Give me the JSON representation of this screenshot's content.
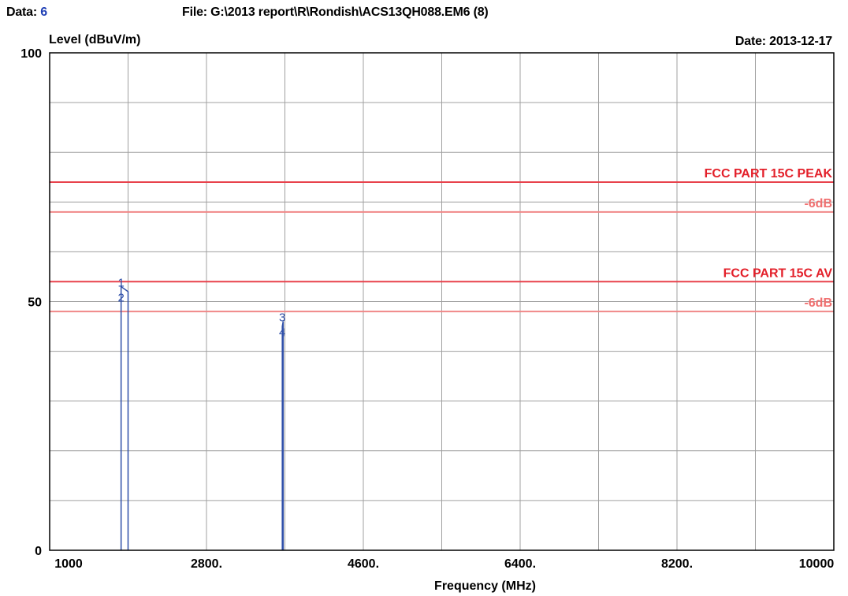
{
  "header": {
    "data_label": "Data:",
    "data_value": "6",
    "file_text": "File: G:\\2013 report\\R\\Rondish\\ACS13QH088.EM6  (8)",
    "date_text": "Date: 2013-12-17"
  },
  "colors": {
    "grid": "#a0a0a0",
    "frame": "#000000",
    "limit_line": "#e8424c",
    "margin_line": "#f08888",
    "limit_label": "#e3202a",
    "margin_label": "#f07070",
    "trace": "#2f4fa8"
  },
  "chart_data": {
    "type": "line",
    "title": "",
    "xlabel": "Frequency (MHz)",
    "ylabel": "Level (dBuV/m)",
    "xlim": [
      1000,
      10000
    ],
    "ylim": [
      0,
      100
    ],
    "x_ticks": [
      1000,
      2800,
      4600,
      6400,
      8200,
      10000
    ],
    "x_tick_labels": [
      "1000",
      "2800.",
      "4600.",
      "6400.",
      "8200.",
      "10000"
    ],
    "y_ticks": [
      0,
      50,
      100
    ],
    "y_tick_labels": [
      "0",
      "50",
      "100"
    ],
    "x_gridlines": [
      1000,
      1900,
      2800,
      3700,
      4600,
      5500,
      6400,
      7300,
      8200,
      9100,
      10000
    ],
    "y_gridlines": [
      0,
      10,
      20,
      30,
      40,
      50,
      60,
      70,
      80,
      90,
      100
    ],
    "grid": true,
    "limit_lines": [
      {
        "name": "FCC PART 15C  PEAK",
        "y": 74,
        "kind": "limit"
      },
      {
        "name": "-6dB",
        "y": 68,
        "kind": "margin"
      },
      {
        "name": "FCC PART 15C AV",
        "y": 54,
        "kind": "limit"
      },
      {
        "name": "-6dB",
        "y": 48,
        "kind": "margin"
      }
    ],
    "series": [
      {
        "x": [
          1820,
          1820,
          1900,
          1900
        ],
        "y": [
          0,
          53,
          52,
          0
        ]
      },
      {
        "x": [
          3670,
          3670,
          3680,
          3680
        ],
        "y": [
          0,
          45,
          46,
          0
        ]
      }
    ],
    "markers": [
      {
        "label": "1",
        "x": 1820,
        "y": 53
      },
      {
        "label": "2",
        "x": 1820,
        "y": 50
      },
      {
        "label": "3",
        "x": 3670,
        "y": 46
      },
      {
        "label": "4",
        "x": 3670,
        "y": 43
      }
    ]
  }
}
